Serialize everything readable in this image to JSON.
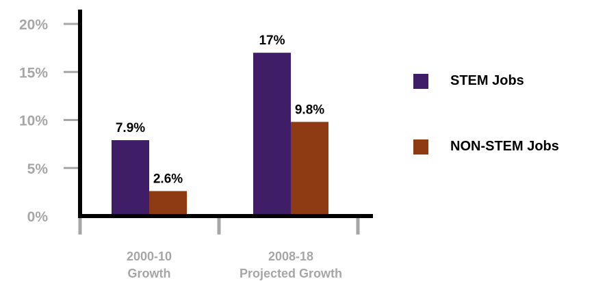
{
  "chart_data": {
    "type": "bar",
    "categories": [
      [
        "2000-10",
        "Growth"
      ],
      [
        "2008-18",
        "Projected Growth"
      ]
    ],
    "series": [
      {
        "name": "STEM Jobs",
        "values": [
          7.9,
          17
        ],
        "labels": [
          "7.9%",
          "17%"
        ],
        "color": "#3f1e67"
      },
      {
        "name": "NON-STEM Jobs",
        "values": [
          2.6,
          9.8
        ],
        "labels": [
          "2.6%",
          "9.8%"
        ],
        "color": "#8e3a12"
      }
    ],
    "yticks": [
      "0%",
      "5%",
      "10%",
      "15%",
      "20%"
    ],
    "ylim": [
      0,
      20
    ],
    "grid": false,
    "legend_position": "right",
    "axis_color": "#000000",
    "tick_color": "#a6a6a6",
    "tick_label_color": "#a6a6a6"
  }
}
